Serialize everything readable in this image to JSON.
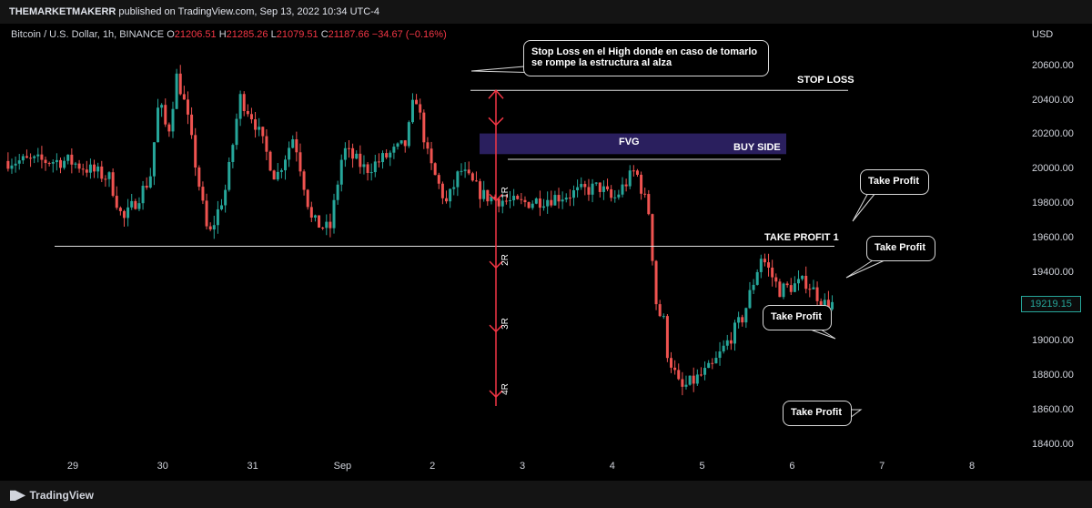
{
  "header": {
    "publisher": "THEMARKETMAKERR",
    "published_text": "published on TradingView.com, Sep 13, 2022 10:34 UTC-4"
  },
  "legend": {
    "symbol": "Bitcoin / U.S. Dollar, 1h, BINANCE",
    "o_label": "O",
    "o_value": "21206.51",
    "h_label": "H",
    "h_value": "21285.26",
    "l_label": "L",
    "l_value": "21079.51",
    "c_label": "C",
    "c_value": "21187.66",
    "change": "−34.67 (−0.16%)"
  },
  "footer": {
    "brand": "TradingView"
  },
  "price_tag": "19219.15",
  "annotations": {
    "stop_loss_note": "Stop Loss en el High donde en caso de tomarlo se rompe la estructura al alza",
    "stop_loss": "STOP LOSS",
    "fvg": "FVG",
    "buy_side": "BUY SIDE",
    "take_profit_1": "TAKE PROFIT 1",
    "tp_bubble_1": "Take Profit",
    "tp_bubble_2": "Take Profit",
    "tp_bubble_3": "Take Profit",
    "tp_bubble_4": "Take Profit",
    "r_levels": [
      "1R",
      "2R",
      "3R",
      "4R"
    ]
  },
  "colors": {
    "up": "#26a69a",
    "down": "#ef5350",
    "arrow": "#f23645",
    "fvg_zone": "#2a1f5e",
    "background": "#000000"
  },
  "chart_data": {
    "type": "candlestick",
    "symbol": "Bitcoin / U.S. Dollar",
    "interval": "1h",
    "exchange": "BINANCE",
    "currency": "USD",
    "ylim": [
      18300,
      20800
    ],
    "y_ticks": [
      18400,
      18600,
      18800,
      19000,
      19200,
      19400,
      19600,
      19800,
      20000,
      20200,
      20400,
      20600
    ],
    "y_tick_labels": [
      "18400.00",
      "18600.00",
      "18800.00",
      "19000.00",
      "19200.00",
      "19400.00",
      "19600.00",
      "19800.00",
      "20000.00",
      "20200.00",
      "20400.00",
      "20600.00"
    ],
    "x_tick_labels": [
      "29",
      "30",
      "31",
      "Sep",
      "2",
      "3",
      "4",
      "5",
      "6",
      "7",
      "8"
    ],
    "last_price": 19219.15,
    "levels": [
      {
        "label": "STOP LOSS",
        "price": 20460
      },
      {
        "label": "BUY SIDE",
        "price": 20060
      },
      {
        "label": "TAKE PROFIT 1",
        "price": 19555
      },
      {
        "label": "1R",
        "price": 19820
      },
      {
        "label": "2R",
        "price": 19430
      },
      {
        "label": "3R",
        "price": 19060
      },
      {
        "label": "4R",
        "price": 18680
      }
    ],
    "fvg_zone": {
      "label": "FVG",
      "top": 20210,
      "bottom": 20090
    },
    "price_path": [
      {
        "t": 0,
        "p": 20050
      },
      {
        "t": 0.45,
        "p": 19950
      },
      {
        "t": 0.6,
        "p": 19700
      },
      {
        "t": 0.9,
        "p": 19950
      },
      {
        "t": 1.0,
        "p": 20400
      },
      {
        "t": 1.1,
        "p": 20200
      },
      {
        "t": 1.2,
        "p": 20550
      },
      {
        "t": 1.3,
        "p": 20350
      },
      {
        "t": 1.45,
        "p": 19900
      },
      {
        "t": 1.55,
        "p": 19600
      },
      {
        "t": 1.75,
        "p": 19900
      },
      {
        "t": 1.9,
        "p": 20420
      },
      {
        "t": 2.05,
        "p": 20300
      },
      {
        "t": 2.3,
        "p": 19950
      },
      {
        "t": 2.5,
        "p": 20200
      },
      {
        "t": 2.7,
        "p": 19700
      },
      {
        "t": 2.9,
        "p": 19650
      },
      {
        "t": 3.05,
        "p": 20120
      },
      {
        "t": 3.3,
        "p": 20000
      },
      {
        "t": 3.75,
        "p": 20150
      },
      {
        "t": 3.85,
        "p": 20450
      },
      {
        "t": 4.0,
        "p": 20050
      },
      {
        "t": 4.2,
        "p": 19800
      },
      {
        "t": 4.35,
        "p": 20000
      },
      {
        "t": 4.6,
        "p": 19850
      },
      {
        "t": 5.0,
        "p": 19800
      },
      {
        "t": 5.5,
        "p": 19850
      },
      {
        "t": 5.9,
        "p": 19900
      },
      {
        "t": 6.05,
        "p": 19820
      },
      {
        "t": 6.3,
        "p": 20000
      },
      {
        "t": 6.45,
        "p": 19750
      },
      {
        "t": 6.55,
        "p": 19100
      },
      {
        "t": 6.8,
        "p": 18720
      },
      {
        "t": 7.15,
        "p": 18850
      },
      {
        "t": 7.5,
        "p": 19150
      },
      {
        "t": 7.7,
        "p": 19500
      },
      {
        "t": 7.9,
        "p": 19300
      },
      {
        "t": 8.2,
        "p": 19350
      },
      {
        "t": 8.4,
        "p": 19220
      }
    ]
  }
}
